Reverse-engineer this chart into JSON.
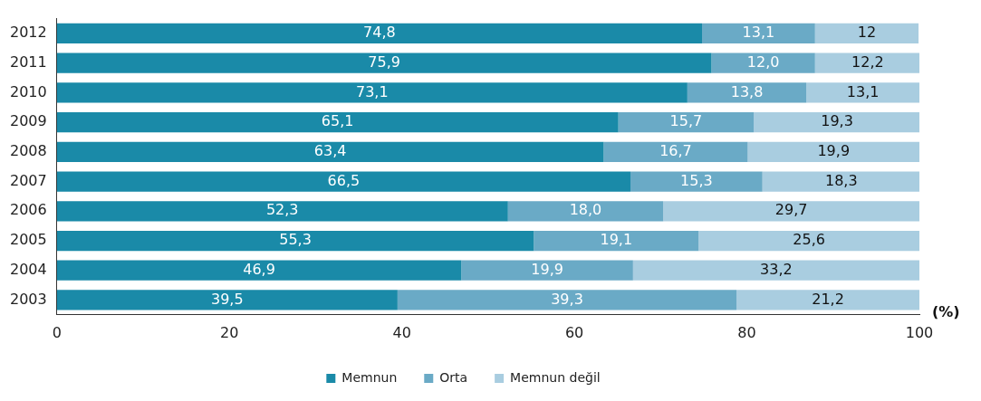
{
  "chart_data": {
    "type": "bar",
    "orientation": "horizontal",
    "stacked": true,
    "xlabel": "(%)",
    "categories": [
      "2012",
      "2011",
      "2010",
      "2009",
      "2008",
      "2007",
      "2006",
      "2005",
      "2004",
      "2003"
    ],
    "series": [
      {
        "name": "Memnun",
        "color": "#1a8aa8",
        "values": [
          74.8,
          75.9,
          73.1,
          65.1,
          63.4,
          66.5,
          52.3,
          55.3,
          46.9,
          39.5
        ],
        "value_labels": [
          "74,8",
          "75,9",
          "73,1",
          "65,1",
          "63,4",
          "66,5",
          "52,3",
          "55,3",
          "46,9",
          "39,5"
        ]
      },
      {
        "name": "Orta",
        "color": "#6aaac6",
        "values": [
          13.1,
          12.0,
          13.8,
          15.7,
          16.7,
          15.3,
          18.0,
          19.1,
          19.9,
          39.3
        ],
        "value_labels": [
          "13,1",
          "12,0",
          "13,8",
          "15,7",
          "16,7",
          "15,3",
          "18,0",
          "19,1",
          "19,9",
          "39,3"
        ]
      },
      {
        "name": "Memnun değil",
        "color": "#a9cde0",
        "values": [
          12,
          12.2,
          13.1,
          19.3,
          19.9,
          18.3,
          29.7,
          25.6,
          33.2,
          21.2
        ],
        "value_labels": [
          "12",
          "12,2",
          "13,1",
          "19,3",
          "19,9",
          "18,3",
          "29,7",
          "25,6",
          "33,2",
          "21,2"
        ]
      }
    ],
    "xlim": [
      0,
      100
    ],
    "xticks": [
      0,
      20,
      40,
      60,
      80,
      100
    ],
    "grid": false,
    "legend": "bottom"
  }
}
